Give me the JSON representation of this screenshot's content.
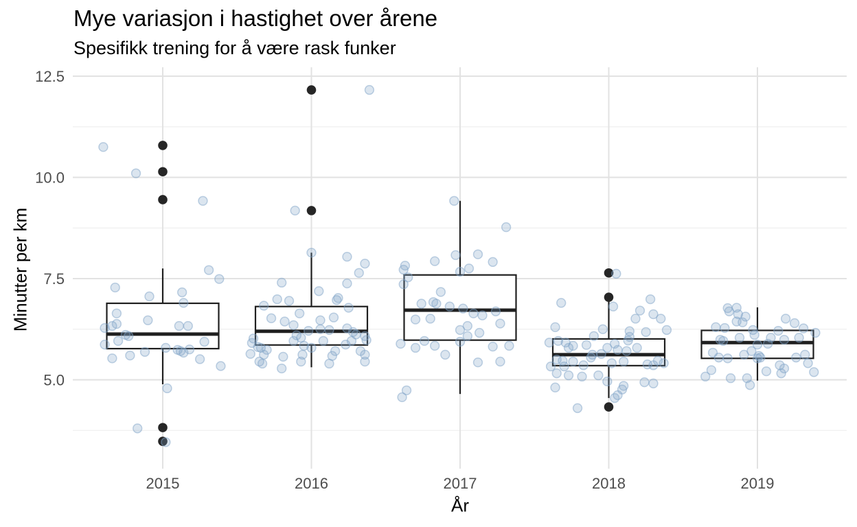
{
  "chart_data": {
    "type": "boxplot",
    "title": "Mye variasjon i hastighet over årene",
    "subtitle": "Spesifikk trening for å være rask funker",
    "xlabel": "År",
    "ylabel": "Minutter per km",
    "legend": "none",
    "grid": {
      "horizontal": "major+minor",
      "vertical": "major"
    },
    "x_categories": [
      "2015",
      "2016",
      "2017",
      "2018",
      "2019"
    ],
    "y_major_ticks": [
      {
        "value": 12.5,
        "label": "12.5"
      },
      {
        "value": 10.0,
        "label": "10.0"
      },
      {
        "value": 7.5,
        "label": "7.5"
      },
      {
        "value": 5.0,
        "label": "5.0"
      }
    ],
    "y_minor_ticks": [
      11.25,
      8.75,
      6.25,
      3.75
    ],
    "ylim": [
      3.2,
      12.6
    ],
    "boxes": [
      {
        "category": "2015",
        "whisker_low": 4.89,
        "q1": 5.77,
        "median": 6.13,
        "q3": 6.89,
        "whisker_high": 7.75,
        "outliers": [
          10.79,
          10.14,
          9.45,
          3.82,
          3.48
        ]
      },
      {
        "category": "2016",
        "whisker_low": 5.31,
        "q1": 5.86,
        "median": 6.2,
        "q3": 6.81,
        "whisker_high": 8.14,
        "outliers": [
          12.16,
          9.18
        ]
      },
      {
        "category": "2017",
        "whisker_low": 4.65,
        "q1": 5.98,
        "median": 6.72,
        "q3": 7.59,
        "whisker_high": 9.42,
        "outliers": []
      },
      {
        "category": "2018",
        "whisker_low": 4.55,
        "q1": 5.35,
        "median": 5.62,
        "q3": 6.01,
        "whisker_high": 6.96,
        "outliers": [
          7.64,
          7.04,
          4.33
        ]
      },
      {
        "category": "2019",
        "whisker_low": 4.98,
        "q1": 5.53,
        "median": 5.92,
        "q3": 6.22,
        "whisker_high": 6.79,
        "outliers": []
      }
    ],
    "jitter_points": {
      "2015": [
        [
          -0.4,
          10.75
        ],
        [
          -0.18,
          10.1
        ],
        [
          0.27,
          9.42
        ],
        [
          0.31,
          7.71
        ],
        [
          0.38,
          7.49
        ],
        [
          -0.32,
          7.28
        ],
        [
          0.13,
          7.16
        ],
        [
          -0.09,
          7.06
        ],
        [
          0.14,
          6.9
        ],
        [
          -0.31,
          6.64
        ],
        [
          -0.1,
          6.47
        ],
        [
          -0.34,
          6.33
        ],
        [
          -0.31,
          6.38
        ],
        [
          -0.39,
          6.28
        ],
        [
          0.11,
          6.33
        ],
        [
          0.17,
          6.33
        ],
        [
          -0.25,
          6.11
        ],
        [
          -0.23,
          6.08
        ],
        [
          -0.3,
          5.96
        ],
        [
          -0.39,
          5.87
        ],
        [
          0.28,
          5.94
        ],
        [
          0.02,
          5.79
        ],
        [
          -0.12,
          5.69
        ],
        [
          0.1,
          5.74
        ],
        [
          0.12,
          5.71
        ],
        [
          0.14,
          5.67
        ],
        [
          0.18,
          5.75
        ],
        [
          -0.34,
          5.53
        ],
        [
          -0.22,
          5.6
        ],
        [
          0.25,
          5.51
        ],
        [
          0.39,
          5.34
        ],
        [
          0.03,
          4.79
        ],
        [
          -0.17,
          3.8
        ],
        [
          0.02,
          3.46
        ]
      ],
      "2016": [
        [
          0.39,
          12.16
        ],
        [
          -0.11,
          9.18
        ],
        [
          0.0,
          8.14
        ],
        [
          0.24,
          8.04
        ],
        [
          0.36,
          7.87
        ],
        [
          0.32,
          7.64
        ],
        [
          -0.2,
          7.4
        ],
        [
          0.24,
          7.38
        ],
        [
          0.05,
          7.19
        ],
        [
          -0.23,
          6.99
        ],
        [
          -0.15,
          6.95
        ],
        [
          0.17,
          6.97
        ],
        [
          0.18,
          7.02
        ],
        [
          -0.32,
          6.83
        ],
        [
          0.25,
          6.78
        ],
        [
          -0.27,
          6.52
        ],
        [
          -0.18,
          6.44
        ],
        [
          -0.08,
          6.64
        ],
        [
          0.06,
          6.47
        ],
        [
          0.15,
          6.54
        ],
        [
          -0.12,
          6.35
        ],
        [
          -0.02,
          6.21
        ],
        [
          0.06,
          6.25
        ],
        [
          0.12,
          6.23
        ],
        [
          0.24,
          6.27
        ],
        [
          0.28,
          6.18
        ],
        [
          0.3,
          6.12
        ],
        [
          -0.1,
          6.1
        ],
        [
          -0.07,
          6.04
        ],
        [
          -0.12,
          5.96
        ],
        [
          0.08,
          5.96
        ],
        [
          -0.39,
          6.02
        ],
        [
          -0.4,
          5.91
        ],
        [
          -0.36,
          5.81
        ],
        [
          -0.34,
          5.79
        ],
        [
          -0.3,
          5.74
        ],
        [
          -0.05,
          5.84
        ],
        [
          0.23,
          5.87
        ],
        [
          0.27,
          5.96
        ],
        [
          0.36,
          6.08
        ],
        [
          0.37,
          5.98
        ],
        [
          -0.41,
          5.64
        ],
        [
          -0.32,
          5.62
        ],
        [
          -0.19,
          5.57
        ],
        [
          0.0,
          5.79
        ],
        [
          -0.06,
          5.62
        ],
        [
          0.16,
          5.71
        ],
        [
          0.14,
          5.59
        ],
        [
          0.33,
          5.71
        ],
        [
          0.36,
          5.62
        ],
        [
          -0.35,
          5.45
        ],
        [
          -0.33,
          5.4
        ],
        [
          -0.2,
          5.28
        ],
        [
          -0.07,
          5.45
        ],
        [
          0.12,
          5.4
        ],
        [
          0.36,
          5.45
        ]
      ],
      "2017": [
        [
          -0.04,
          9.42
        ],
        [
          0.31,
          8.77
        ],
        [
          -0.03,
          8.08
        ],
        [
          0.12,
          8.1
        ],
        [
          -0.17,
          7.93
        ],
        [
          0.22,
          7.91
        ],
        [
          -0.37,
          7.82
        ],
        [
          -0.38,
          7.72
        ],
        [
          0.0,
          7.67
        ],
        [
          0.06,
          7.75
        ],
        [
          -0.35,
          7.53
        ],
        [
          -0.38,
          7.36
        ],
        [
          -0.13,
          7.17
        ],
        [
          -0.26,
          6.88
        ],
        [
          -0.18,
          6.92
        ],
        [
          -0.16,
          6.88
        ],
        [
          -0.07,
          6.81
        ],
        [
          0.02,
          6.76
        ],
        [
          0.09,
          6.64
        ],
        [
          0.15,
          6.59
        ],
        [
          0.24,
          6.69
        ],
        [
          -0.3,
          6.49
        ],
        [
          -0.2,
          6.51
        ],
        [
          0.27,
          6.39
        ],
        [
          0.0,
          6.23
        ],
        [
          0.05,
          6.33
        ],
        [
          0.13,
          6.16
        ],
        [
          0.05,
          6.08
        ],
        [
          -0.24,
          5.96
        ],
        [
          0.0,
          5.94
        ],
        [
          -0.4,
          5.89
        ],
        [
          -0.3,
          5.79
        ],
        [
          -0.17,
          5.84
        ],
        [
          -0.1,
          5.62
        ],
        [
          0.22,
          5.82
        ],
        [
          0.33,
          5.84
        ],
        [
          0.12,
          5.43
        ],
        [
          0.27,
          5.45
        ],
        [
          -0.36,
          4.74
        ],
        [
          -0.39,
          4.57
        ]
      ],
      "2018": [
        [
          0.05,
          7.62
        ],
        [
          -0.32,
          6.9
        ],
        [
          0.03,
          6.81
        ],
        [
          0.28,
          6.99
        ],
        [
          0.21,
          6.71
        ],
        [
          0.3,
          6.62
        ],
        [
          0.35,
          6.51
        ],
        [
          0.18,
          6.51
        ],
        [
          -0.36,
          6.3
        ],
        [
          -0.04,
          6.25
        ],
        [
          0.14,
          6.2
        ],
        [
          0.25,
          6.18
        ],
        [
          0.39,
          6.23
        ],
        [
          -0.1,
          6.08
        ],
        [
          0.14,
          6.06
        ],
        [
          0.13,
          5.97
        ],
        [
          -0.34,
          5.96
        ],
        [
          -0.29,
          5.92
        ],
        [
          -0.4,
          5.92
        ],
        [
          -0.24,
          5.84
        ],
        [
          -0.27,
          5.79
        ],
        [
          -0.15,
          5.86
        ],
        [
          0.04,
          5.89
        ],
        [
          -0.01,
          5.79
        ],
        [
          0.06,
          5.74
        ],
        [
          0.12,
          5.71
        ],
        [
          0.19,
          5.79
        ],
        [
          -0.05,
          5.64
        ],
        [
          -0.11,
          5.62
        ],
        [
          -0.12,
          5.55
        ],
        [
          -0.35,
          5.5
        ],
        [
          -0.31,
          5.47
        ],
        [
          -0.24,
          5.45
        ],
        [
          -0.3,
          5.33
        ],
        [
          -0.39,
          5.33
        ],
        [
          -0.17,
          5.36
        ],
        [
          0.02,
          5.41
        ],
        [
          0.1,
          5.45
        ],
        [
          0.33,
          5.47
        ],
        [
          0.37,
          5.41
        ],
        [
          0.26,
          5.38
        ],
        [
          0.3,
          5.36
        ],
        [
          -0.35,
          5.16
        ],
        [
          -0.27,
          5.11
        ],
        [
          -0.18,
          5.08
        ],
        [
          -0.07,
          5.11
        ],
        [
          -0.01,
          4.96
        ],
        [
          0.24,
          4.94
        ],
        [
          0.3,
          4.91
        ],
        [
          -0.36,
          4.81
        ],
        [
          0.09,
          4.76
        ],
        [
          0.04,
          4.55
        ],
        [
          -0.21,
          4.3
        ],
        [
          0.06,
          4.62
        ],
        [
          0.1,
          4.85
        ]
      ],
      "2019": [
        [
          -0.19,
          6.69
        ],
        [
          -0.14,
          6.78
        ],
        [
          -0.13,
          6.62
        ],
        [
          -0.08,
          6.56
        ],
        [
          -0.14,
          6.44
        ],
        [
          -0.1,
          6.42
        ],
        [
          -0.28,
          6.3
        ],
        [
          -0.22,
          6.28
        ],
        [
          0.19,
          6.51
        ],
        [
          0.25,
          6.4
        ],
        [
          0.31,
          6.27
        ],
        [
          0.39,
          6.16
        ],
        [
          0.14,
          6.21
        ],
        [
          -0.03,
          6.23
        ],
        [
          -0.02,
          6.11
        ],
        [
          -0.25,
          5.99
        ],
        [
          -0.23,
          5.96
        ],
        [
          -0.12,
          6.04
        ],
        [
          0.09,
          6.04
        ],
        [
          0.07,
          5.89
        ],
        [
          0.18,
          5.99
        ],
        [
          0.28,
          6.04
        ],
        [
          0.0,
          5.87
        ],
        [
          -0.3,
          5.67
        ],
        [
          -0.26,
          5.55
        ],
        [
          -0.2,
          5.53
        ],
        [
          -0.09,
          5.62
        ],
        [
          -0.04,
          5.71
        ],
        [
          0.01,
          5.59
        ],
        [
          0.02,
          5.55
        ],
        [
          0.0,
          5.53
        ],
        [
          0.26,
          5.55
        ],
        [
          0.32,
          5.62
        ],
        [
          0.34,
          5.41
        ],
        [
          0.15,
          5.36
        ],
        [
          0.18,
          5.28
        ],
        [
          0.16,
          5.16
        ],
        [
          0.06,
          5.21
        ],
        [
          -0.31,
          5.24
        ],
        [
          -0.35,
          5.08
        ],
        [
          -0.18,
          5.04
        ],
        [
          -0.07,
          5.04
        ],
        [
          -0.05,
          4.87
        ],
        [
          0.38,
          5.19
        ],
        [
          -0.2,
          6.77
        ]
      ]
    },
    "colors": {
      "box_line": "#1f1f1f",
      "box_fill": "#ffffff",
      "outlier_point": "#262626",
      "jitter_base": "#7fa3c7",
      "grid_major": "#e2e2e2",
      "grid_minor": "#efefef",
      "tick_label": "#4d4d4d",
      "text": "#000000",
      "background": "#ffffff"
    }
  }
}
